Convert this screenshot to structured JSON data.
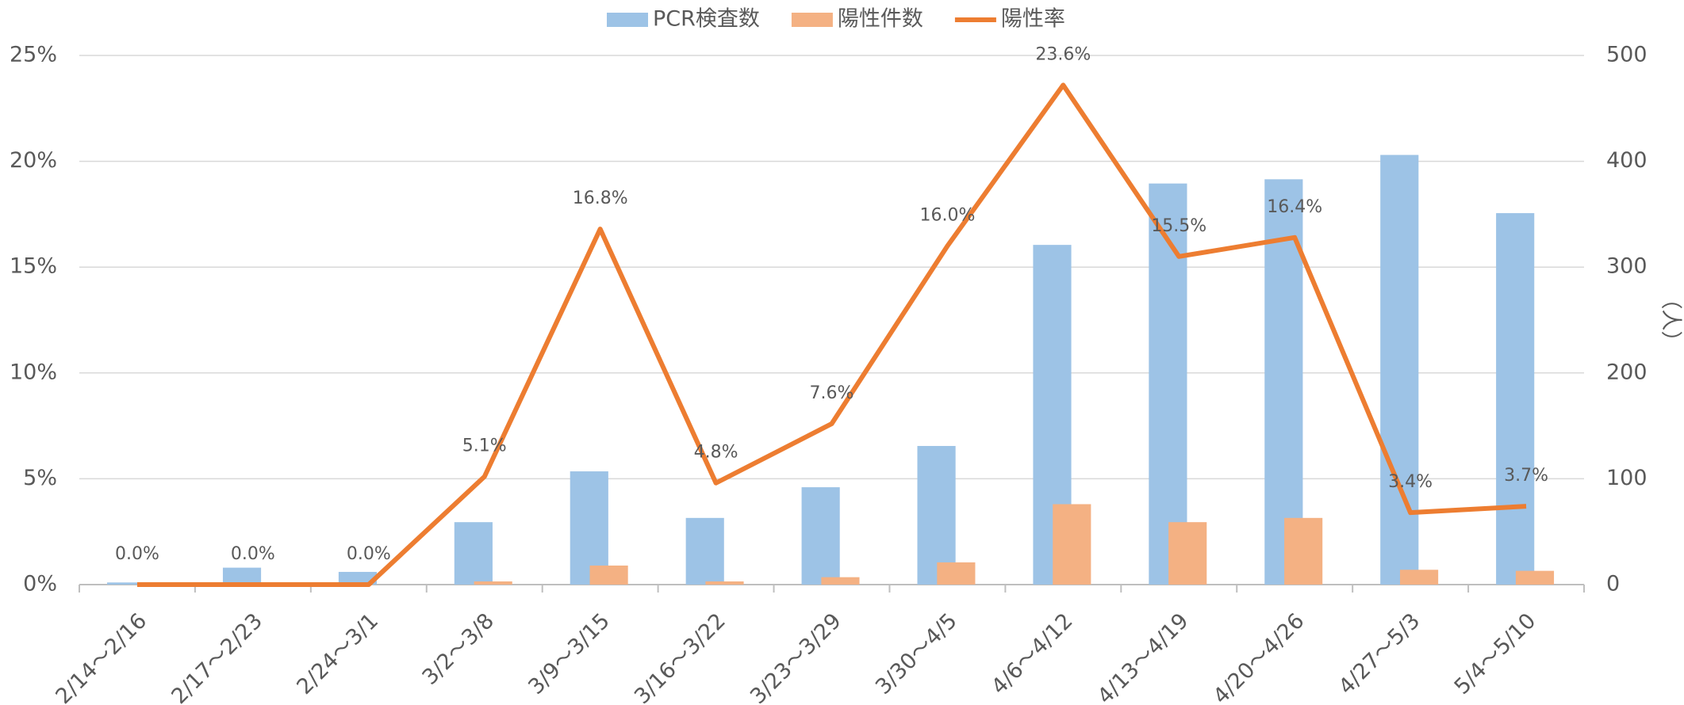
{
  "chart_data": {
    "type": "bar_line",
    "categories": [
      "2/14～2/16",
      "2/17～2/23",
      "2/24～3/1",
      "3/2～3/8",
      "3/9～3/15",
      "3/16～3/22",
      "3/23～3/29",
      "3/30～4/5",
      "4/6～4/12",
      "4/13～4/19",
      "4/20～4/26",
      "4/27～5/3",
      "5/4～5/10"
    ],
    "series": [
      {
        "name": "PCR検査数",
        "type": "bar",
        "axis": "y2",
        "color": "#9dc3e6",
        "values": [
          2,
          16,
          12,
          59,
          107,
          63,
          92,
          131,
          321,
          379,
          383,
          406,
          351
        ]
      },
      {
        "name": "陽性件数",
        "type": "bar",
        "axis": "y2",
        "color": "#f4b183",
        "values": [
          0,
          0,
          0,
          3,
          18,
          3,
          7,
          21,
          76,
          59,
          63,
          14,
          13
        ]
      },
      {
        "name": "陽性率",
        "type": "line",
        "axis": "y",
        "color": "#ed7d31",
        "values": [
          0,
          0,
          0,
          5.1,
          16.8,
          4.8,
          7.6,
          16.0,
          23.6,
          15.5,
          16.4,
          3.4,
          3.7
        ],
        "value_labels": [
          "0.0%",
          "0.0%",
          "0.0%",
          "5.1%",
          "16.8%",
          "4.8%",
          "7.6%",
          "16.0%",
          "23.6%",
          "15.5%",
          "16.4%",
          "3.4%",
          "3.7%"
        ]
      }
    ],
    "ylim": [
      0,
      25
    ],
    "yticks": [
      {
        "value": 0,
        "label": "0%"
      },
      {
        "value": 5,
        "label": "5%"
      },
      {
        "value": 10,
        "label": "10%"
      },
      {
        "value": 15,
        "label": "15%"
      },
      {
        "value": 20,
        "label": "20%"
      },
      {
        "value": 25,
        "label": "25%"
      }
    ],
    "y2lim": [
      0,
      500
    ],
    "y2ticks": [
      0,
      100,
      200,
      300,
      400,
      500
    ],
    "y2label": "（人）",
    "grid": true,
    "legend": "top"
  }
}
